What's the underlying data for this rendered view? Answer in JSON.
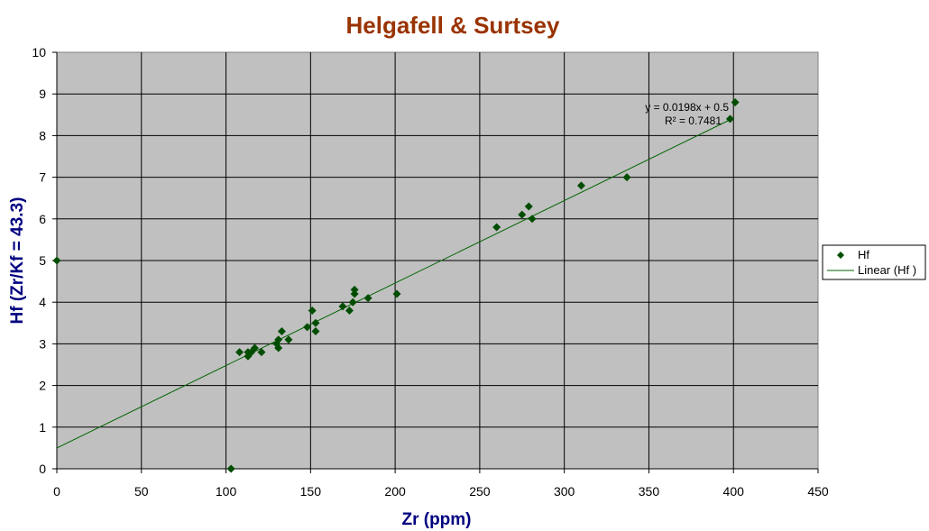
{
  "colors": {
    "title": "#993300",
    "axis_title": "#000080",
    "plot_bg": "#c0c0c0",
    "grid": "#000000",
    "marker": "#004d00",
    "trendline": "#006400"
  },
  "chart_data": {
    "type": "scatter",
    "title": "Helgafell & Surtsey",
    "xlabel": "Zr (ppm)",
    "ylabel": "Hf   (Zr/Kf =  43.3)",
    "xlim": [
      0,
      450
    ],
    "ylim": [
      0,
      10
    ],
    "x_ticks": [
      "0",
      "50",
      "100",
      "150",
      "200",
      "250",
      "300",
      "350",
      "400",
      "450"
    ],
    "y_ticks": [
      "0",
      "1",
      "2",
      "3",
      "4",
      "5",
      "6",
      "7",
      "8",
      "9",
      "10"
    ],
    "grid": true,
    "legend_position": "right",
    "series": [
      {
        "name": "Hf",
        "marker": "diamond",
        "points": [
          [
            0,
            5.0
          ],
          [
            103,
            0.0
          ],
          [
            108,
            2.8
          ],
          [
            113,
            2.7
          ],
          [
            113,
            2.8
          ],
          [
            115,
            2.8
          ],
          [
            117,
            2.9
          ],
          [
            121,
            2.8
          ],
          [
            130,
            3.0
          ],
          [
            131,
            2.9
          ],
          [
            131,
            3.1
          ],
          [
            133,
            3.3
          ],
          [
            137,
            3.1
          ],
          [
            148,
            3.4
          ],
          [
            151,
            3.8
          ],
          [
            153,
            3.3
          ],
          [
            153,
            3.5
          ],
          [
            169,
            3.9
          ],
          [
            173,
            3.8
          ],
          [
            175,
            4.0
          ],
          [
            176,
            4.2
          ],
          [
            176,
            4.3
          ],
          [
            184,
            4.1
          ],
          [
            201,
            4.2
          ],
          [
            260,
            5.8
          ],
          [
            275,
            6.1
          ],
          [
            279,
            6.3
          ],
          [
            281,
            6.0
          ],
          [
            310,
            6.8
          ],
          [
            337,
            7.0
          ],
          [
            398,
            8.4
          ],
          [
            401,
            8.8
          ]
        ]
      }
    ],
    "trendline": {
      "name": "Linear (Hf )",
      "slope": 0.0198,
      "intercept": 0.5,
      "x_range": [
        0,
        400
      ],
      "equation_label": "y = 0.0198x + 0.5",
      "r2_label": "R² = 0.7481"
    }
  }
}
